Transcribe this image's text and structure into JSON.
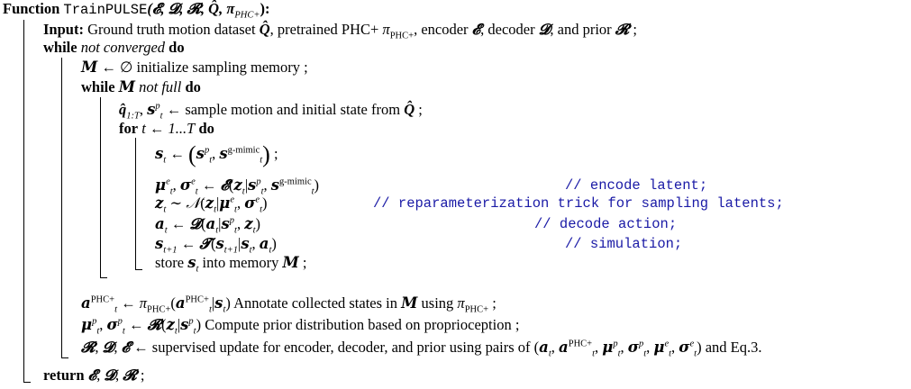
{
  "algorithm": {
    "function_keyword": "Function",
    "function_name": "TrainPULSE",
    "signature_args": "(𝓔, 𝓓, 𝓡, Q̂, π",
    "signature_pi_sub": "PHC+",
    "signature_end": "):"
  },
  "lines": [
    {
      "keyword": "Input:",
      "text": "Ground truth motion dataset Q̂, pretrained PHC+ π",
      "sub": "PHC+",
      "text2": ", encoder 𝓔, decoder 𝓓, and prior 𝓡 ;"
    },
    {
      "keyword": "while",
      "italic": "not converged",
      "keyword2": "do"
    },
    {
      "math": "𝑴 ← ∅",
      "text": "initialize sampling memory ;"
    },
    {
      "keyword": "while",
      "math": "𝑴",
      "italic": "not full",
      "keyword2": "do"
    },
    {
      "math": "q̂",
      "sub": "1:T",
      "math2": ", 𝒔",
      "sup": "p",
      "sub2": "t",
      "text": "← sample motion and initial state from Q̂ ;"
    },
    {
      "keyword": "for",
      "math": "t ← 1...T",
      "keyword2": "do"
    },
    {
      "math": "𝒔",
      "sub": "t",
      "text": "← (𝒔",
      "sup": "p",
      "sup2": "g-mimic",
      "end": ") ;"
    },
    {
      "math": "𝝁",
      "text": "← 𝓔(𝒛",
      "comment": "// encode latent;"
    },
    {
      "math": "𝒛",
      "text": "∼ 𝒩(𝒛",
      "comment": "// reparameterization trick for sampling latents;"
    },
    {
      "math": "𝒂",
      "text": "← 𝓓(𝒂",
      "comment": "// decode action;"
    },
    {
      "math": "𝒔",
      "text": "← 𝓣(𝒔",
      "comment": "// simulation;"
    },
    {
      "text": "store 𝒔",
      "sub": "t",
      "text2": "into memory 𝑴 ;"
    },
    {
      "math": "𝒂",
      "sup": "PHC+",
      "text": "Annotate collected states in 𝑴 using π",
      "sub": "PHC+",
      "end": ";"
    },
    {
      "math": "𝝁",
      "text": "Compute prior distribution based on proprioception ;"
    },
    {
      "math": "𝓡, 𝓓, 𝓔 ←",
      "text": "supervised update for encoder, decoder, and prior using pairs of",
      "end": "and Eq.3."
    },
    {
      "keyword": "return",
      "math": "𝓔, 𝓓, 𝓡 ;"
    }
  ],
  "strings": {
    "input_kw": "Input:",
    "input_text1": "Ground truth motion dataset ",
    "input_text2": ", pretrained PHC+ ",
    "input_text3": ", encoder ",
    "input_text4": ", decoder ",
    "input_text5": ", and prior ",
    "while_kw": "while",
    "do_kw": "do",
    "not_converged": "not converged",
    "init_mem": "initialize sampling memory ;",
    "not_full": "not full",
    "sample_text": "← sample motion and initial state from ",
    "for_kw": "for",
    "for_range": "t ← 1...T",
    "store_text": "store ",
    "into_mem": " into memory ",
    "annotate_text": "Annotate collected states in ",
    "using_text": " using ",
    "prior_text": "Compute prior distribution based on proprioception ;",
    "update_text": " supervised update for encoder, decoder, and prior using pairs of ",
    "eq_text": " and Eq.3.",
    "return_kw": "return",
    "c_encode": "// encode latent;",
    "c_reparam": "// reparameterization trick for sampling latents;",
    "c_decode": "// decode action;",
    "c_sim": "// simulation;"
  }
}
